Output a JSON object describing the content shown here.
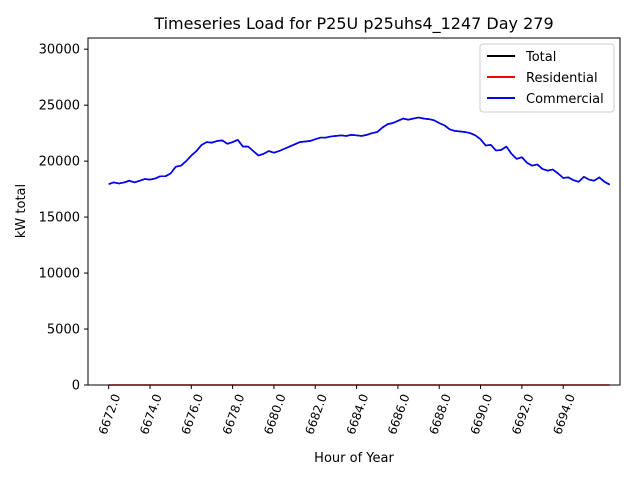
{
  "chart_data": {
    "type": "line",
    "title": "Timeseries Load for P25U p25uhs4_1247  Day 279",
    "xlabel": "Hour of Year",
    "ylabel": "kW total",
    "xlim": [
      6671.0,
      6696.75
    ],
    "ylim": [
      0,
      31000
    ],
    "x_ticks": [
      6672.0,
      6674.0,
      6676.0,
      6678.0,
      6680.0,
      6682.0,
      6684.0,
      6686.0,
      6688.0,
      6690.0,
      6692.0,
      6694.0
    ],
    "x_tick_labels": [
      "6672.0",
      "6674.0",
      "6676.0",
      "6678.0",
      "6680.0",
      "6682.0",
      "6684.0",
      "6686.0",
      "6688.0",
      "6690.0",
      "6692.0",
      "6694.0"
    ],
    "y_ticks": [
      0,
      5000,
      10000,
      15000,
      20000,
      25000,
      30000
    ],
    "y_tick_labels": [
      "0",
      "5000",
      "10000",
      "15000",
      "20000",
      "25000",
      "30000"
    ],
    "legend_position": "top-right",
    "x_start": 6672.0,
    "x_step": 0.25,
    "series": [
      {
        "name": "Total",
        "color": "#000000",
        "values": [
          17950,
          18100,
          18000,
          18100,
          18250,
          18100,
          18250,
          18400,
          18350,
          18450,
          18650,
          18650,
          18900,
          19500,
          19600,
          20000,
          20500,
          20900,
          21450,
          21700,
          21650,
          21800,
          21850,
          21550,
          21700,
          21900,
          21300,
          21300,
          20900,
          20500,
          20650,
          20900,
          20750,
          20900,
          21100,
          21300,
          21500,
          21700,
          21750,
          21800,
          21950,
          22100,
          22100,
          22200,
          22250,
          22300,
          22250,
          22350,
          22300,
          22250,
          22350,
          22500,
          22600,
          23000,
          23300,
          23400,
          23600,
          23800,
          23700,
          23800,
          23900,
          23800,
          23750,
          23650,
          23400,
          23200,
          22850,
          22700,
          22650,
          22600,
          22500,
          22300,
          21950,
          21400,
          21450,
          20950,
          21000,
          21300,
          20650,
          20200,
          20350,
          19850,
          19600,
          19700,
          19300,
          19150,
          19250,
          18900,
          18500,
          18550,
          18300,
          18150,
          18600,
          18350,
          18250,
          18550,
          18150,
          17900
        ]
      },
      {
        "name": "Residential",
        "color": "#ff0000",
        "values": [
          0,
          0
        ]
      },
      {
        "name": "Commercial",
        "color": "#0000ff",
        "values": [
          17950,
          18100,
          18000,
          18100,
          18250,
          18100,
          18250,
          18400,
          18350,
          18450,
          18650,
          18650,
          18900,
          19500,
          19600,
          20000,
          20500,
          20900,
          21450,
          21700,
          21650,
          21800,
          21850,
          21550,
          21700,
          21900,
          21300,
          21300,
          20900,
          20500,
          20650,
          20900,
          20750,
          20900,
          21100,
          21300,
          21500,
          21700,
          21750,
          21800,
          21950,
          22100,
          22100,
          22200,
          22250,
          22300,
          22250,
          22350,
          22300,
          22250,
          22350,
          22500,
          22600,
          23000,
          23300,
          23400,
          23600,
          23800,
          23700,
          23800,
          23900,
          23800,
          23750,
          23650,
          23400,
          23200,
          22850,
          22700,
          22650,
          22600,
          22500,
          22300,
          21950,
          21400,
          21450,
          20950,
          21000,
          21300,
          20650,
          20200,
          20350,
          19850,
          19600,
          19700,
          19300,
          19150,
          19250,
          18900,
          18500,
          18550,
          18300,
          18150,
          18600,
          18350,
          18250,
          18550,
          18150,
          17900
        ]
      }
    ]
  }
}
